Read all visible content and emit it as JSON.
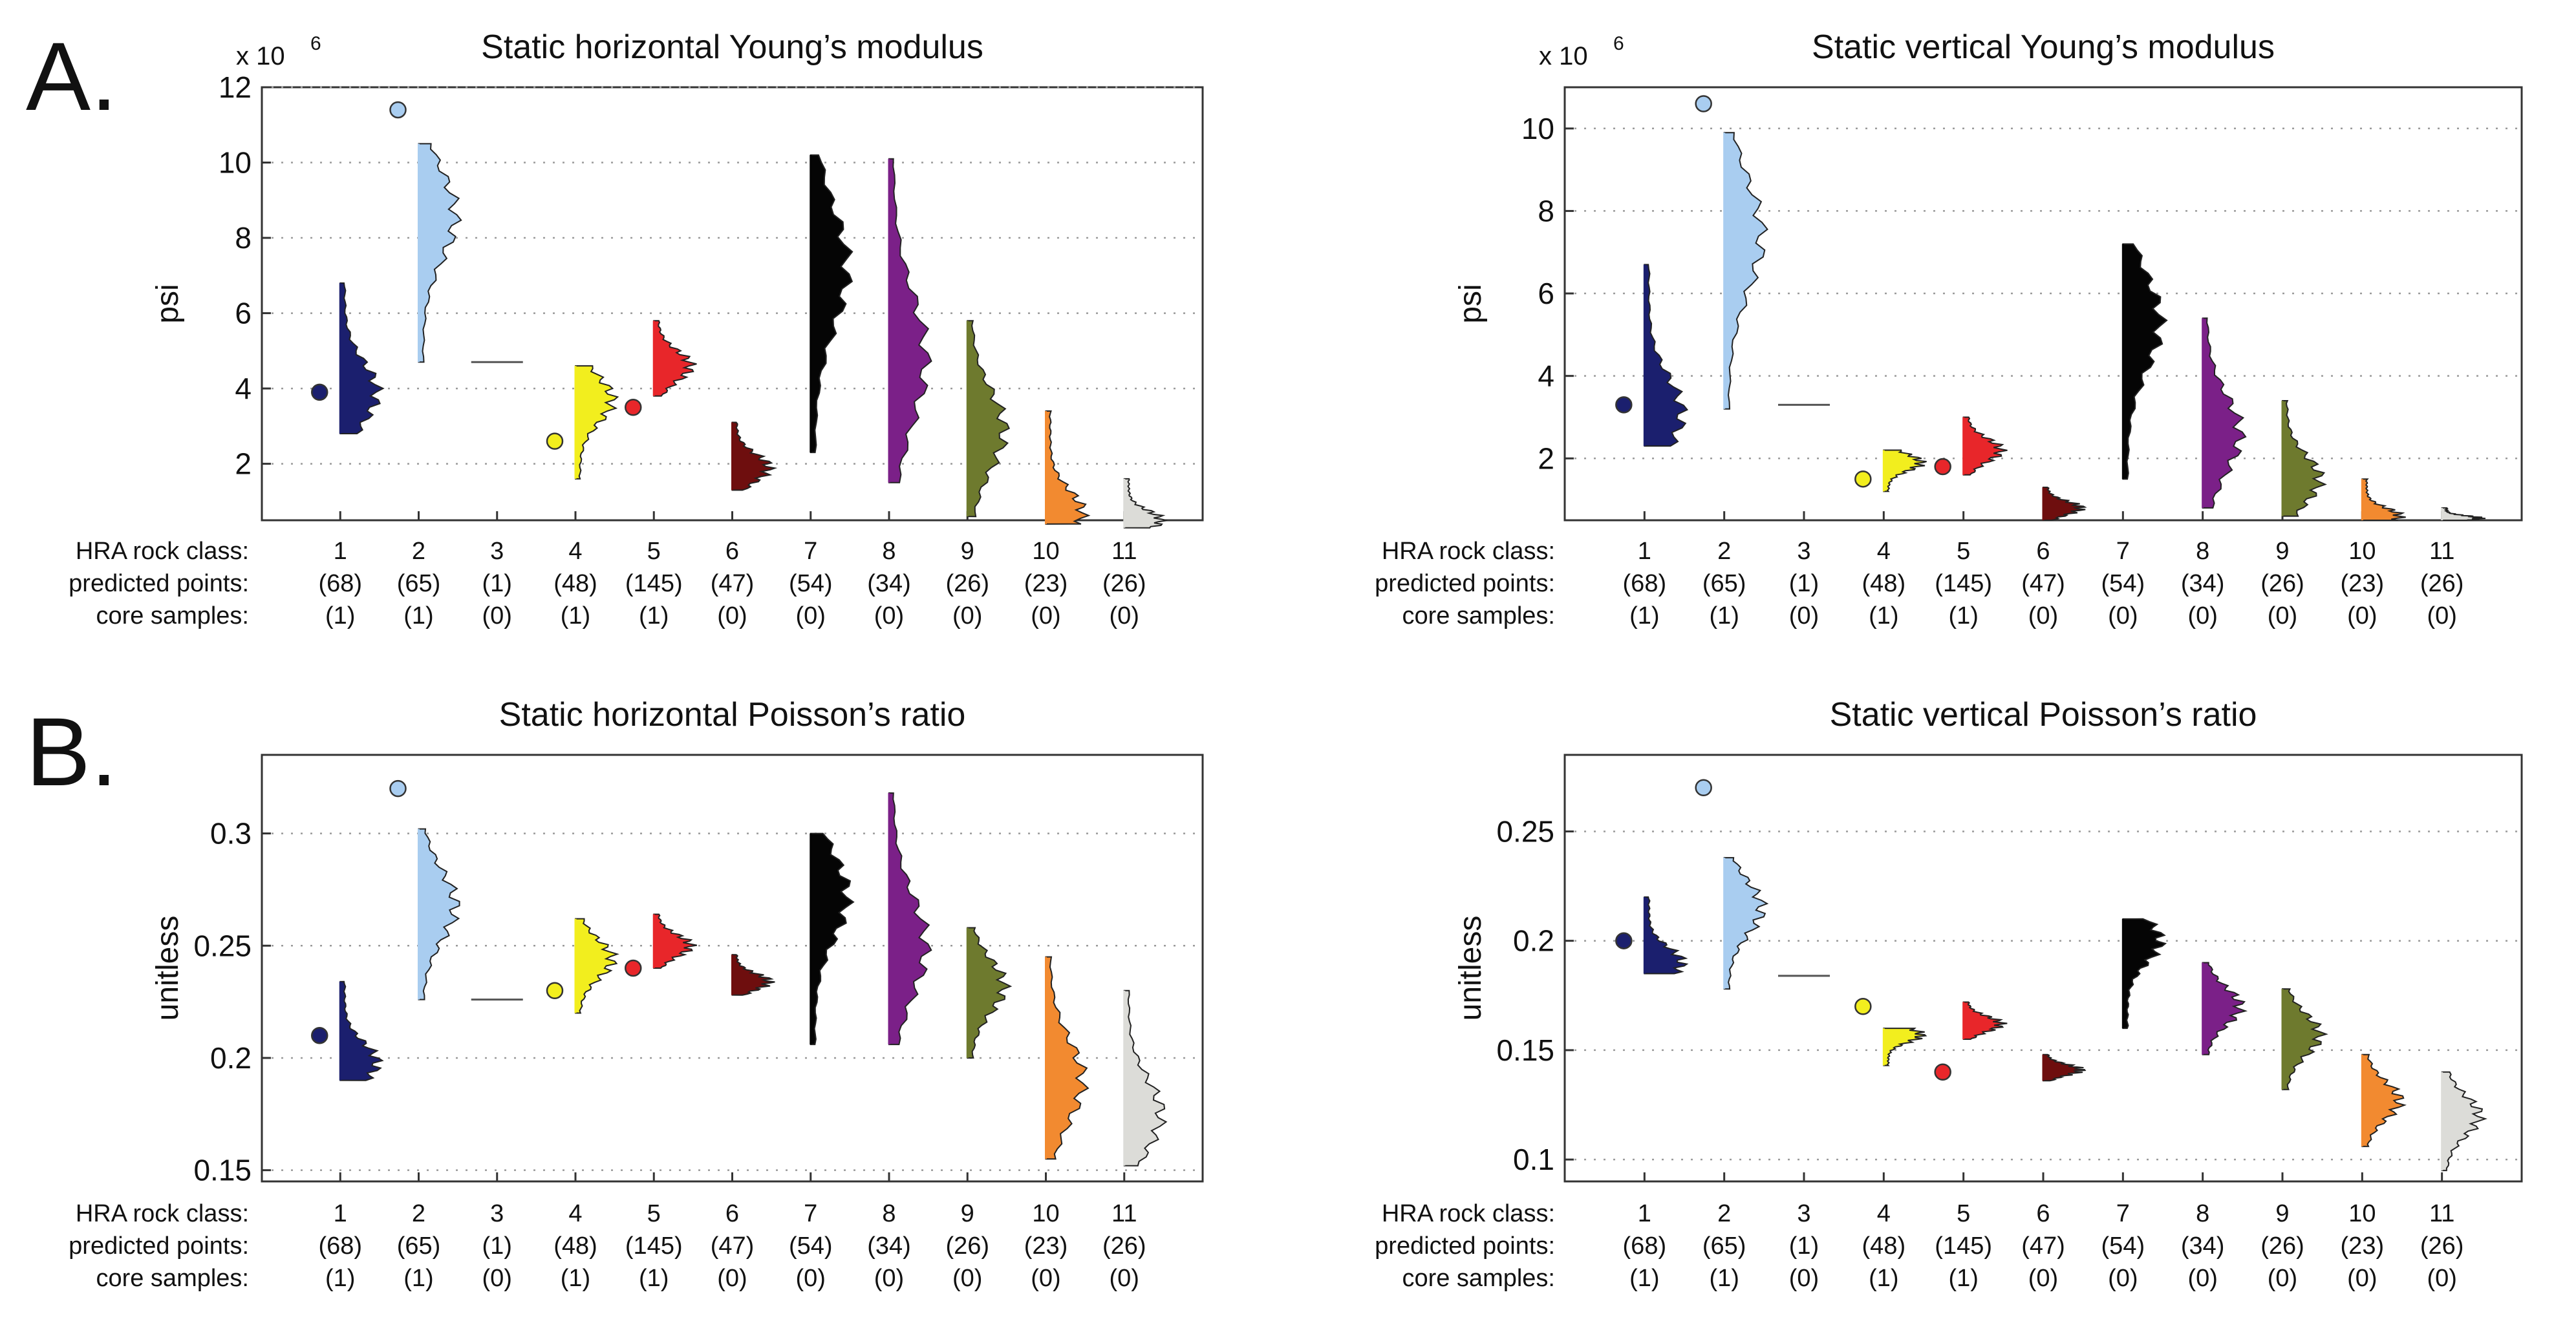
{
  "panel_labels": [
    "A.",
    "B."
  ],
  "table_row_labels": [
    "HRA rock class:",
    "predicted points:",
    "core samples:"
  ],
  "classes": [
    "1",
    "2",
    "3",
    "4",
    "5",
    "6",
    "7",
    "8",
    "9",
    "10",
    "11"
  ],
  "predicted_points": [
    "(68)",
    "(65)",
    "(1)",
    "(48)",
    "(145)",
    "(47)",
    "(54)",
    "(34)",
    "(26)",
    "(23)",
    "(26)"
  ],
  "core_samples": [
    "(1)",
    "(1)",
    "(0)",
    "(1)",
    "(1)",
    "(0)",
    "(0)",
    "(0)",
    "(0)",
    "(0)",
    "(0)"
  ],
  "class_colors": [
    "#1b1f6e",
    "#a9cdf0",
    "#555555",
    "#f2ee1e",
    "#e8262a",
    "#6e0e0e",
    "#050505",
    "#7b2088",
    "#6e7a2e",
    "#f28a30",
    "#dcdcd8"
  ],
  "chart_data": [
    {
      "type": "violin",
      "title": "Static horizontal Young’s modulus",
      "ylabel": "psi",
      "exponent_label": "x 10",
      "exponent": "6",
      "ylim": [
        0.5,
        12
      ],
      "yticks": [
        2,
        4,
        6,
        8,
        10,
        12
      ],
      "categories": [
        "1",
        "2",
        "3",
        "4",
        "5",
        "6",
        "7",
        "8",
        "9",
        "10",
        "11"
      ],
      "ranges": [
        [
          2.8,
          6.8
        ],
        [
          4.7,
          10.5
        ],
        [
          4.7,
          4.7
        ],
        [
          1.6,
          4.6
        ],
        [
          3.8,
          5.8
        ],
        [
          1.3,
          3.1
        ],
        [
          2.3,
          10.2
        ],
        [
          1.5,
          10.1
        ],
        [
          0.6,
          5.8
        ],
        [
          0.4,
          3.4
        ],
        [
          0.3,
          1.6
        ]
      ],
      "modes": [
        3.9,
        8.6,
        4.7,
        3.7,
        4.6,
        1.9,
        7.2,
        4.8,
        2.9,
        0.7,
        0.5
      ],
      "core_sample_values": [
        3.9,
        11.4,
        null,
        2.6,
        3.5,
        null,
        null,
        null,
        null,
        null,
        null
      ]
    },
    {
      "type": "violin",
      "title": "Static vertical Young’s modulus",
      "ylabel": "psi",
      "exponent_label": "x 10",
      "exponent": "6",
      "ylim": [
        0.5,
        11
      ],
      "yticks": [
        2,
        4,
        6,
        8,
        10
      ],
      "categories": [
        "1",
        "2",
        "3",
        "4",
        "5",
        "6",
        "7",
        "8",
        "9",
        "10",
        "11"
      ],
      "ranges": [
        [
          2.3,
          6.7
        ],
        [
          3.2,
          9.9
        ],
        [
          3.3,
          3.3
        ],
        [
          1.2,
          2.2
        ],
        [
          1.6,
          3.0
        ],
        [
          0.5,
          1.3
        ],
        [
          1.5,
          7.2
        ],
        [
          0.8,
          5.4
        ],
        [
          0.6,
          3.4
        ],
        [
          0.5,
          1.5
        ],
        [
          0.5,
          0.8
        ]
      ],
      "modes": [
        3.1,
        7.4,
        3.3,
        1.9,
        2.2,
        0.8,
        5.3,
        2.6,
        1.5,
        0.6,
        0.55
      ],
      "core_sample_values": [
        3.3,
        10.6,
        null,
        1.5,
        1.8,
        null,
        null,
        null,
        null,
        null,
        null
      ]
    },
    {
      "type": "violin",
      "title": "Static horizontal Poisson’s ratio",
      "ylabel": "unitless",
      "ylim": [
        0.145,
        0.335
      ],
      "yticks": [
        0.15,
        0.2,
        0.25,
        0.3
      ],
      "categories": [
        "1",
        "2",
        "3",
        "4",
        "5",
        "6",
        "7",
        "8",
        "9",
        "10",
        "11"
      ],
      "ranges": [
        [
          0.19,
          0.234
        ],
        [
          0.226,
          0.302
        ],
        [
          0.226,
          0.226
        ],
        [
          0.22,
          0.262
        ],
        [
          0.24,
          0.264
        ],
        [
          0.228,
          0.246
        ],
        [
          0.206,
          0.3
        ],
        [
          0.206,
          0.318
        ],
        [
          0.2,
          0.258
        ],
        [
          0.155,
          0.245
        ],
        [
          0.152,
          0.23
        ]
      ],
      "modes": [
        0.198,
        0.268,
        0.226,
        0.244,
        0.25,
        0.234,
        0.272,
        0.25,
        0.232,
        0.19,
        0.175
      ],
      "core_sample_values": [
        0.21,
        0.32,
        null,
        0.23,
        0.24,
        null,
        null,
        null,
        null,
        null,
        null
      ]
    },
    {
      "type": "violin",
      "title": "Static vertical Poisson’s ratio",
      "ylabel": "unitless",
      "ylim": [
        0.09,
        0.285
      ],
      "yticks": [
        0.1,
        0.15,
        0.2,
        0.25
      ],
      "categories": [
        "1",
        "2",
        "3",
        "4",
        "5",
        "6",
        "7",
        "8",
        "9",
        "10",
        "11"
      ],
      "ranges": [
        [
          0.185,
          0.22
        ],
        [
          0.178,
          0.238
        ],
        [
          0.184,
          0.184
        ],
        [
          0.143,
          0.16
        ],
        [
          0.155,
          0.172
        ],
        [
          0.136,
          0.148
        ],
        [
          0.16,
          0.21
        ],
        [
          0.148,
          0.19
        ],
        [
          0.132,
          0.178
        ],
        [
          0.106,
          0.148
        ],
        [
          0.095,
          0.14
        ]
      ],
      "modes": [
        0.19,
        0.215,
        0.184,
        0.157,
        0.162,
        0.141,
        0.2,
        0.17,
        0.157,
        0.127,
        0.12
      ],
      "core_sample_values": [
        0.2,
        0.27,
        null,
        0.17,
        0.14,
        null,
        null,
        null,
        null,
        null,
        null
      ]
    }
  ]
}
